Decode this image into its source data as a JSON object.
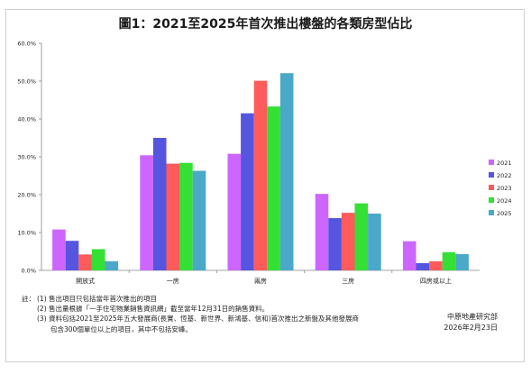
{
  "chart_data": {
    "type": "bar",
    "title": "圖1：2021至2025年首次推出樓盤的各類房型佔比",
    "xlabel": "",
    "ylabel": "",
    "ylim": [
      0,
      60
    ],
    "yticks": [
      "0.0%",
      "10.0%",
      "20.0%",
      "30.0%",
      "40.0%",
      "50.0%",
      "60.0%"
    ],
    "categories": [
      "開放式",
      "一房",
      "兩房",
      "三房",
      "四房或以上"
    ],
    "series": [
      {
        "name": "2021",
        "color": "#cc66ff",
        "values": [
          10.8,
          30.4,
          30.8,
          20.2,
          7.7
        ]
      },
      {
        "name": "2022",
        "color": "#5555e0",
        "values": [
          7.8,
          35.0,
          41.5,
          13.8,
          1.9
        ]
      },
      {
        "name": "2023",
        "color": "#ff5b5b",
        "values": [
          4.2,
          28.2,
          50.1,
          15.2,
          2.4
        ]
      },
      {
        "name": "2024",
        "color": "#33e033",
        "values": [
          5.6,
          28.4,
          43.3,
          17.7,
          4.8
        ]
      },
      {
        "name": "2025",
        "color": "#4aa8c8",
        "values": [
          2.4,
          26.3,
          52.1,
          15.0,
          4.3
        ]
      }
    ],
    "grid": false,
    "legend": "right"
  },
  "notes": {
    "lead": "註：",
    "items": [
      "(1) 售出項目只包括當年首次推出的項目",
      "(2) 售出量根據「一手住宅物業銷售資訊網」截至當年12月31日的銷售資料。",
      "(3) 資料包括2021至2025年五大發展商(長實、恆基、新世界、新鴻基、信和)首次推出之新盤及其他發展商",
      "包含300個單位以上的項目，其中不包括安峰。"
    ]
  },
  "source": {
    "org": "中原地產研究部",
    "date": "2026年2月23日"
  }
}
